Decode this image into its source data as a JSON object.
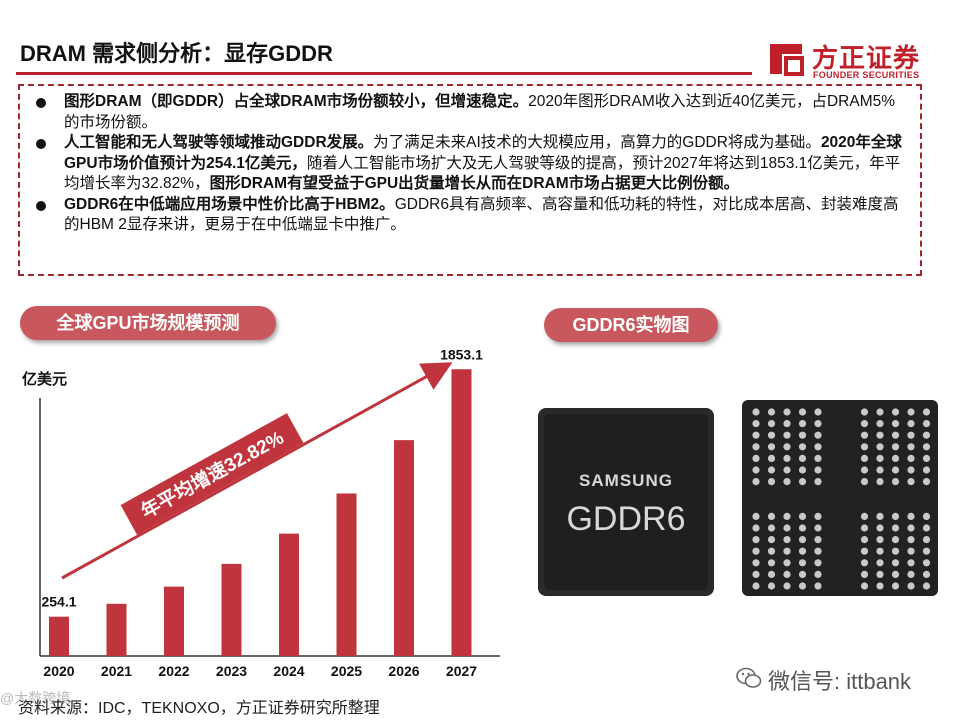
{
  "header": {
    "title": "DRAM 需求侧分析：显存GDDR",
    "logo_cn": "方正证券",
    "logo_en": "FOUNDER SECURITIES"
  },
  "bullets": [
    {
      "bold": "图形DRAM（即GDDR）占全球DRAM市场份额较小，但增速稳定。",
      "text": "2020年图形DRAM收入达到近40亿美元，占DRAM5%的市场份额。"
    },
    {
      "bold": "人工智能和无人驾驶等领域推动GDDR发展。",
      "text": "为了满足未来AI技术的大规模应用，高算力的GDDR将成为基础。",
      "bold2": "2020年全球GPU市场价值预计为254.1亿美元，",
      "text2": "随着人工智能市场扩大及无人驾驶等级的提高，预计2027年将达到1853.1亿美元，年平均增长率为32.82%，",
      "bold3": "图形DRAM有望受益于GPU出货量增长从而在DRAM市场占据更大比例份额。"
    },
    {
      "bold": "GDDR6在中低端应用场景中性价比高于HBM2。",
      "text": "GDDR6具有高频率、高容量和低功耗的特性，对比成本居高、封装难度高的HBM 2显存来讲，更易于在中低端显卡中推广。"
    }
  ],
  "left_panel": {
    "title": "全球GPU市场规模预测"
  },
  "right_panel": {
    "title": "GDDR6实物图",
    "chip_brand": "SAMSUNG",
    "chip_model": "GDDR6"
  },
  "chart_data": {
    "type": "bar",
    "categories": [
      "2020",
      "2021",
      "2022",
      "2023",
      "2024",
      "2025",
      "2026",
      "2027"
    ],
    "values": [
      254.1,
      337.5,
      448.3,
      595.4,
      790.8,
      1050.3,
      1395.1,
      1853.1
    ],
    "value_labels": [
      "254.1",
      "",
      "",
      "",
      "",
      "",
      "",
      "1853.1"
    ],
    "ylabel": "亿美元",
    "ylim": [
      0,
      1900
    ],
    "annotation": "年平均增速32.82%",
    "bar_color": "#c0353d"
  },
  "footer": {
    "source": "资料来源：IDC，TEKNOXO，方正证券研究所整理",
    "watermark_left": "@大数跨境",
    "wechat": "微信号: ittbank"
  }
}
